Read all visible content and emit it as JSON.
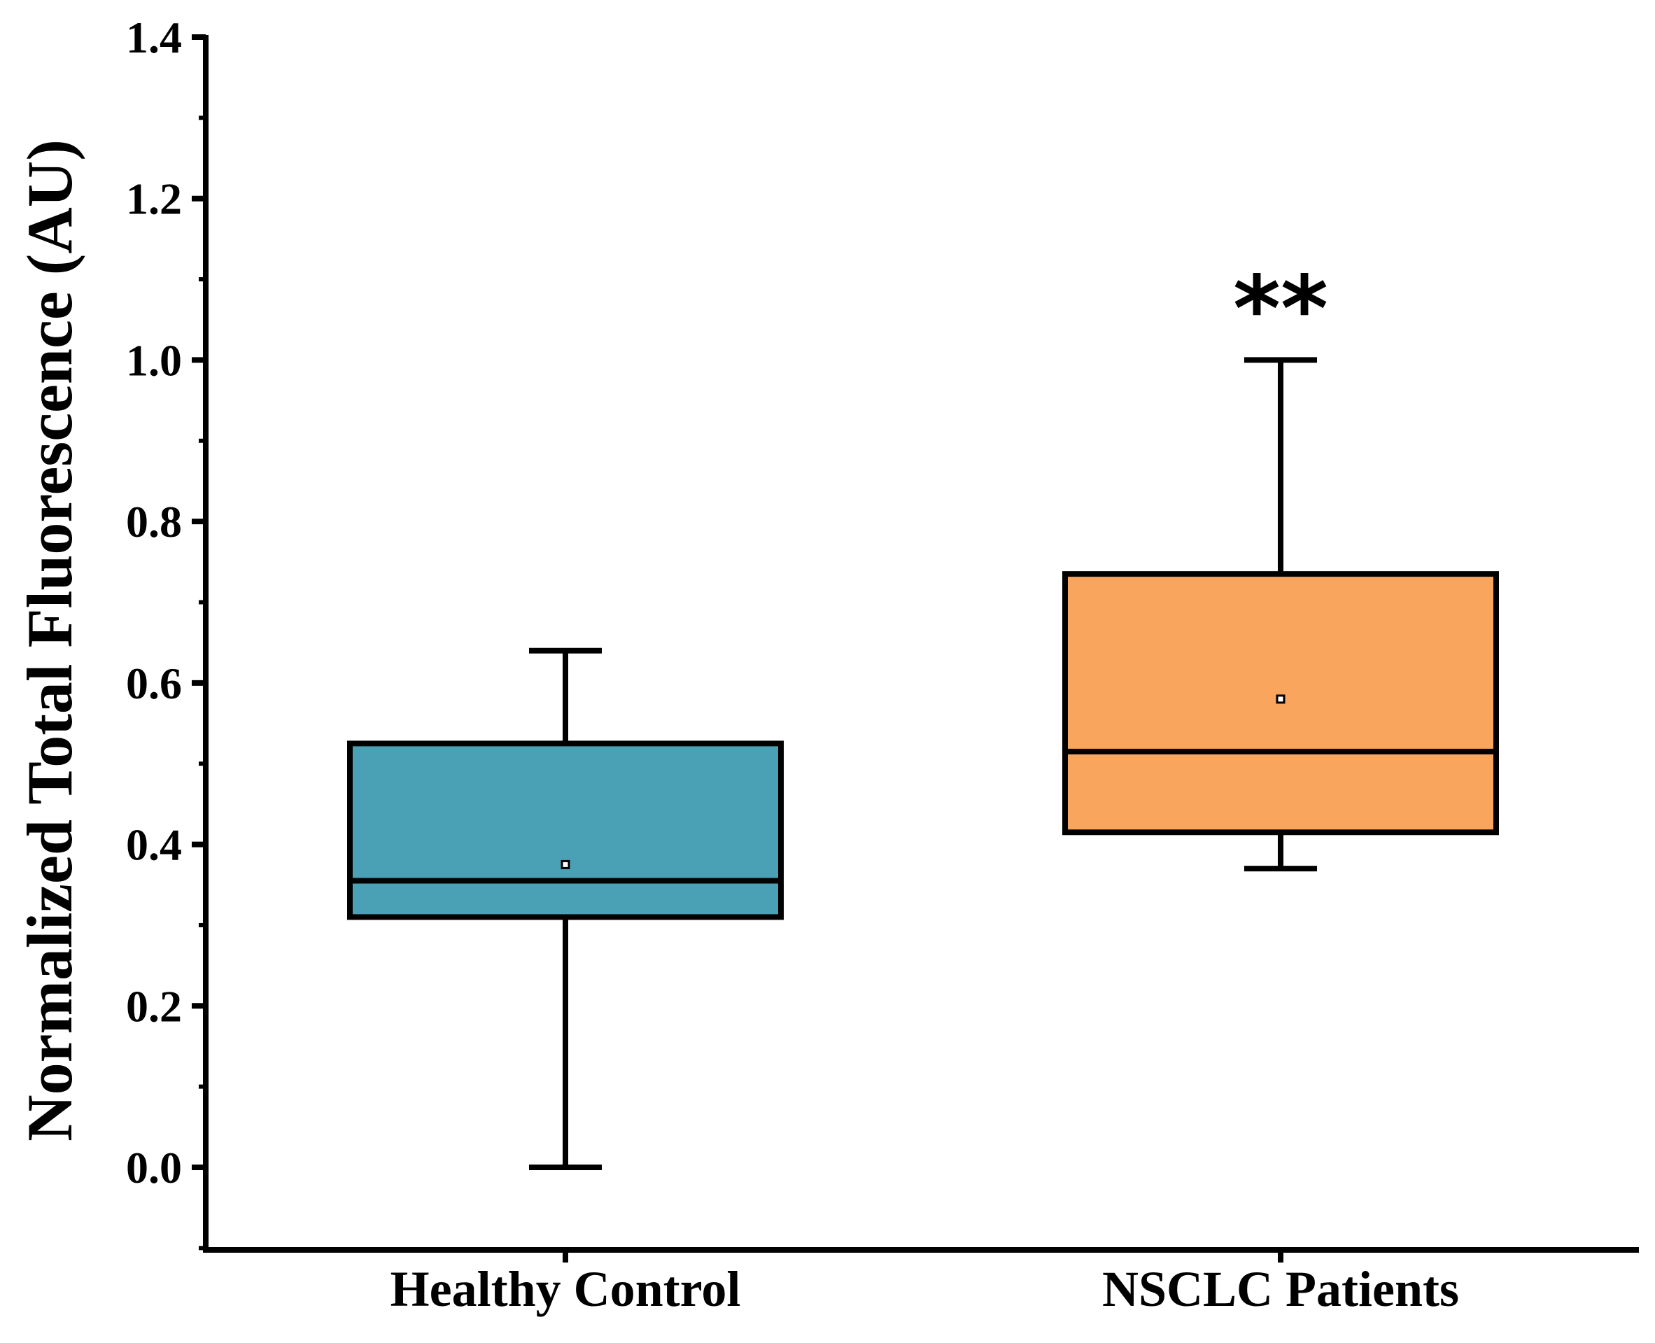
{
  "chart_data": {
    "type": "box",
    "title": "",
    "xlabel": "",
    "ylabel": "Normalized Total Fluorescence (AU)",
    "ylim": [
      -0.1,
      1.4
    ],
    "yticks": [
      "0.0",
      "0.2",
      "0.4",
      "0.6",
      "0.8",
      "1.0",
      "1.2",
      "1.4"
    ],
    "ytick_values": [
      0.0,
      0.2,
      0.4,
      0.6,
      0.8,
      1.0,
      1.2,
      1.4
    ],
    "grid": false,
    "categories": [
      "Healthy Control",
      "NSCLC Patients"
    ],
    "series": [
      {
        "name": "Healthy Control",
        "whisker_low": 0.0,
        "q1": 0.31,
        "median": 0.355,
        "q3": 0.525,
        "whisker_high": 0.64,
        "mean": 0.375,
        "color": "#4AA0B5"
      },
      {
        "name": "NSCLC Patients",
        "whisker_low": 0.37,
        "q1": 0.415,
        "median": 0.515,
        "q3": 0.735,
        "whisker_high": 1.0,
        "mean": 0.58,
        "color": "#F9A55E"
      }
    ],
    "annotations": [
      {
        "category": "NSCLC Patients",
        "text": "**"
      }
    ]
  }
}
